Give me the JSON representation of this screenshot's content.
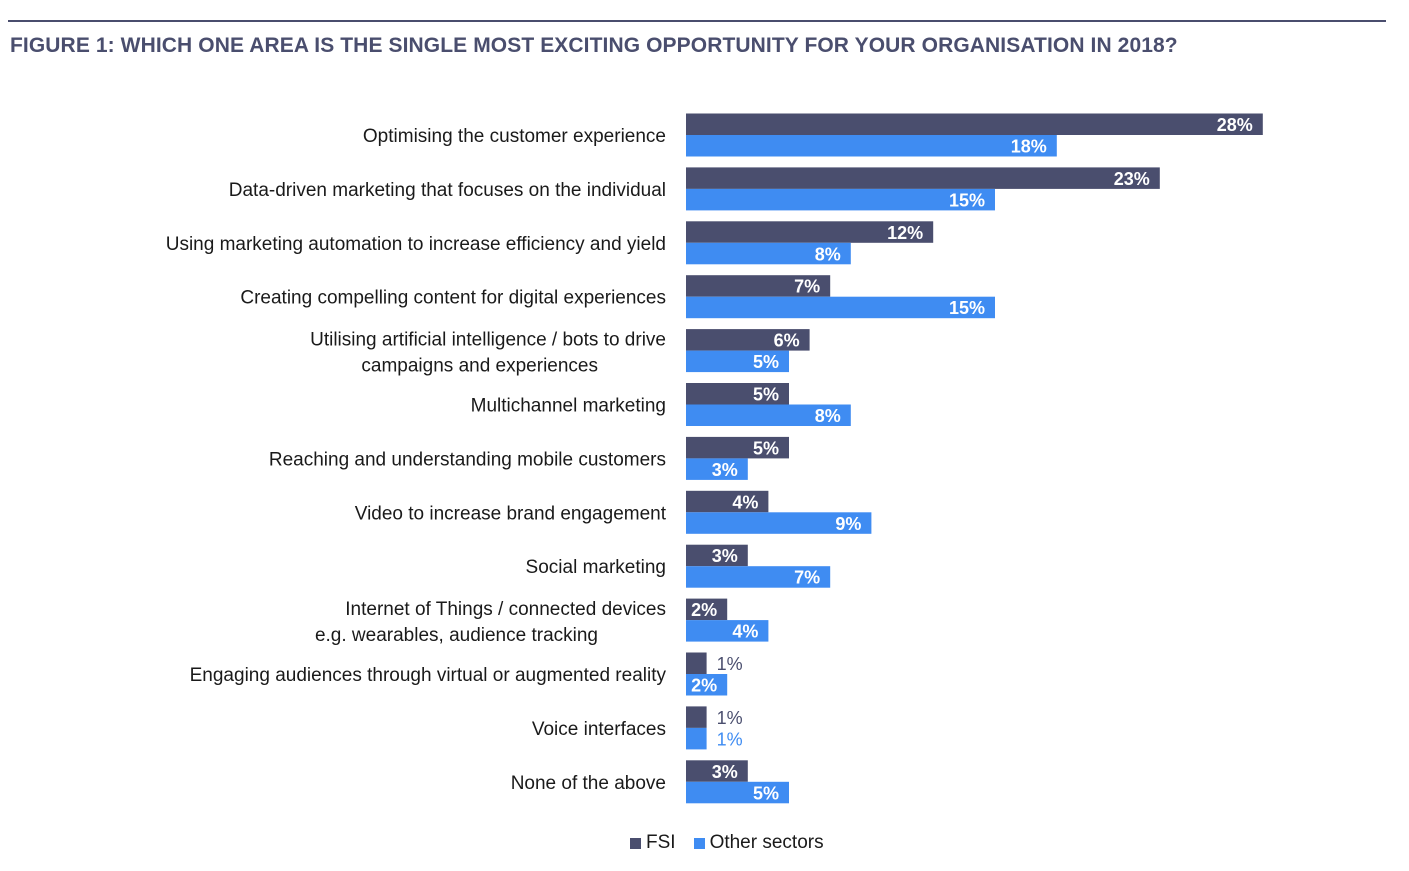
{
  "title": "FIGURE 1: WHICH ONE AREA IS THE SINGLE MOST EXCITING OPPORTUNITY FOR YOUR ORGANISATION IN 2018?",
  "colors": {
    "title": "#4a4e6e",
    "fsi": "#4a4e6e",
    "other": "#3f8cf2",
    "label_inside": "#ffffff",
    "label_outside_fsi": "#4a4e6e",
    "label_outside_other": "#3f8cf2"
  },
  "chart_data": {
    "type": "bar",
    "orientation": "horizontal",
    "categories": [
      [
        "Optimising the customer experience"
      ],
      [
        "Data-driven marketing that focuses on the individual"
      ],
      [
        "Using marketing automation to increase efficiency and yield"
      ],
      [
        "Creating compelling content for digital experiences"
      ],
      [
        "Utilising artificial intelligence / bots to drive",
        "campaigns and experiences"
      ],
      [
        "Multichannel marketing"
      ],
      [
        "Reaching and understanding mobile customers"
      ],
      [
        "Video to increase brand engagement"
      ],
      [
        "Social marketing"
      ],
      [
        "Internet of Things / connected devices",
        "e.g. wearables, audience tracking"
      ],
      [
        "Engaging audiences through virtual or augmented reality"
      ],
      [
        "Voice interfaces"
      ],
      [
        "None of the above"
      ]
    ],
    "series": [
      {
        "name": "FSI",
        "color": "#4a4e6e",
        "values": [
          28,
          23,
          12,
          7,
          6,
          5,
          5,
          4,
          3,
          2,
          1,
          1,
          3
        ]
      },
      {
        "name": "Other sectors",
        "color": "#3f8cf2",
        "values": [
          18,
          15,
          8,
          15,
          5,
          8,
          3,
          9,
          7,
          4,
          2,
          1,
          5
        ]
      }
    ],
    "value_suffix": "%",
    "xlim": [
      0,
      28
    ],
    "grid": false,
    "legend_position": "bottom-center"
  }
}
